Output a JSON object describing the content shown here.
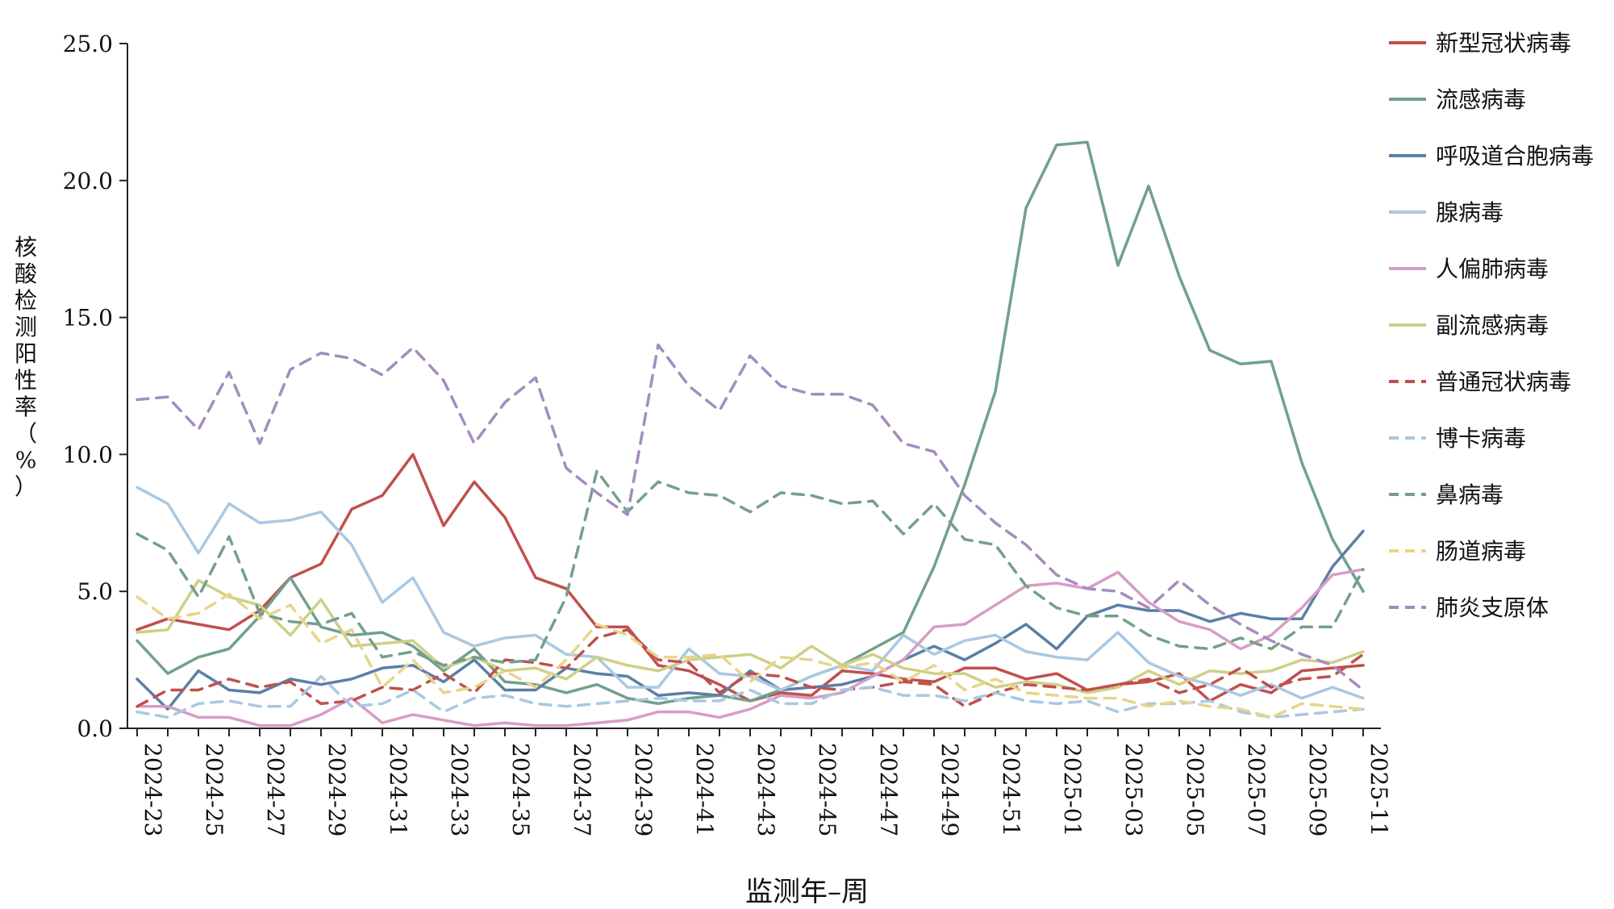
{
  "chart_data": {
    "type": "line",
    "title": "",
    "xlabel": "监测年–周",
    "ylabel": "核酸检测阳性率（%）",
    "ylim": [
      0,
      25
    ],
    "yticks": [
      "0.0",
      "5.0",
      "10.0",
      "15.0",
      "20.0",
      "25.0"
    ],
    "categories": [
      "2024-23",
      "2024-24",
      "2024-25",
      "2024-26",
      "2024-27",
      "2024-28",
      "2024-29",
      "2024-30",
      "2024-31",
      "2024-32",
      "2024-33",
      "2024-34",
      "2024-35",
      "2024-36",
      "2024-37",
      "2024-38",
      "2024-39",
      "2024-40",
      "2024-41",
      "2024-42",
      "2024-43",
      "2024-44",
      "2024-45",
      "2024-46",
      "2024-47",
      "2024-48",
      "2024-49",
      "2024-50",
      "2024-51",
      "2024-52",
      "2025-01",
      "2025-02",
      "2025-03",
      "2025-04",
      "2025-05",
      "2025-06",
      "2025-07",
      "2025-08",
      "2025-09",
      "2025-10",
      "2025-11"
    ],
    "tick_labels": [
      "2024-23",
      "2024-25",
      "2024-27",
      "2024-29",
      "2024-31",
      "2024-33",
      "2024-35",
      "2024-37",
      "2024-39",
      "2024-41",
      "2024-43",
      "2024-45",
      "2024-47",
      "2024-49",
      "2024-51",
      "2025-01",
      "2025-03",
      "2025-05",
      "2025-07",
      "2025-09",
      "2025-11"
    ],
    "legend_position": "right",
    "grid": false,
    "series": [
      {
        "name": "新型冠状病毒",
        "color": "#c0504d",
        "dash": false,
        "values": [
          3.6,
          4.0,
          3.8,
          3.6,
          4.3,
          5.5,
          6.0,
          8.0,
          8.5,
          10.0,
          7.4,
          9.0,
          7.7,
          5.5,
          5.1,
          3.7,
          3.7,
          2.3,
          2.1,
          1.6,
          1.0,
          1.3,
          1.2,
          2.1,
          2.0,
          1.8,
          1.7,
          2.2,
          2.2,
          1.8,
          2.0,
          1.4,
          1.6,
          1.7,
          2.0,
          1.0,
          1.6,
          1.3,
          2.1,
          2.2,
          2.3
        ]
      },
      {
        "name": "流感病毒",
        "color": "#72a08c",
        "dash": false,
        "values": [
          3.2,
          2.0,
          2.6,
          2.9,
          4.1,
          5.5,
          3.7,
          3.4,
          3.5,
          3.0,
          2.1,
          2.9,
          1.7,
          1.6,
          1.3,
          1.6,
          1.1,
          0.9,
          1.1,
          1.2,
          1.0,
          1.4,
          1.9,
          2.3,
          2.9,
          3.5,
          5.9,
          8.9,
          12.3,
          19.0,
          21.3,
          21.4,
          16.9,
          19.8,
          16.5,
          13.8,
          13.3,
          13.4,
          9.7,
          6.9,
          5.0
        ]
      },
      {
        "name": "呼吸道合胞病毒",
        "color": "#5b7fa6",
        "dash": false,
        "values": [
          1.8,
          0.7,
          2.1,
          1.4,
          1.3,
          1.8,
          1.6,
          1.8,
          2.2,
          2.3,
          1.7,
          2.5,
          1.4,
          1.4,
          2.2,
          2.0,
          1.9,
          1.2,
          1.3,
          1.2,
          2.1,
          1.4,
          1.5,
          1.6,
          1.9,
          2.5,
          3.0,
          2.5,
          3.1,
          3.8,
          2.9,
          4.1,
          4.5,
          4.3,
          4.3,
          3.9,
          4.2,
          4.0,
          4.0,
          5.9,
          7.2
        ]
      },
      {
        "name": "腺病毒",
        "color": "#a9c8e2",
        "dash": false,
        "values": [
          8.8,
          8.2,
          6.4,
          8.2,
          7.5,
          7.6,
          7.9,
          6.7,
          4.6,
          5.5,
          3.5,
          3.0,
          3.3,
          3.4,
          2.7,
          2.6,
          1.5,
          1.5,
          2.9,
          2.0,
          1.9,
          1.4,
          1.9,
          2.3,
          2.1,
          3.4,
          2.7,
          3.2,
          3.4,
          2.8,
          2.6,
          2.5,
          3.5,
          2.4,
          1.9,
          1.6,
          1.2,
          1.6,
          1.1,
          1.5,
          1.1
        ]
      },
      {
        "name": "人偏肺病毒",
        "color": "#d89cc4",
        "dash": false,
        "values": [
          0.8,
          0.8,
          0.4,
          0.4,
          0.1,
          0.1,
          0.5,
          1.1,
          0.2,
          0.5,
          0.3,
          0.1,
          0.2,
          0.1,
          0.1,
          0.2,
          0.3,
          0.6,
          0.6,
          0.4,
          0.7,
          1.2,
          1.1,
          1.3,
          1.9,
          2.5,
          3.7,
          3.8,
          4.5,
          5.2,
          5.3,
          5.1,
          5.7,
          4.6,
          3.9,
          3.6,
          2.9,
          3.4,
          4.4,
          5.6,
          5.8
        ]
      },
      {
        "name": "副流感病毒",
        "color": "#cfcf86",
        "dash": false,
        "values": [
          3.5,
          3.6,
          5.4,
          4.8,
          4.5,
          3.4,
          4.7,
          3.0,
          3.1,
          3.2,
          2.2,
          2.6,
          2.1,
          2.2,
          1.8,
          2.6,
          2.3,
          2.1,
          2.5,
          2.6,
          2.7,
          2.2,
          3.0,
          2.3,
          2.7,
          2.2,
          2.0,
          2.0,
          1.5,
          1.7,
          1.6,
          1.3,
          1.5,
          2.1,
          1.6,
          2.1,
          2.0,
          2.1,
          2.5,
          2.4,
          2.8
        ]
      },
      {
        "name": "普通冠状病毒",
        "color": "#c0504d",
        "dash": true,
        "values": [
          0.8,
          1.4,
          1.4,
          1.8,
          1.5,
          1.7,
          0.9,
          1.0,
          1.5,
          1.4,
          2.0,
          1.3,
          2.5,
          2.4,
          2.2,
          3.3,
          3.6,
          2.5,
          2.4,
          1.3,
          2.0,
          1.9,
          1.5,
          1.4,
          1.5,
          1.7,
          1.6,
          0.8,
          1.3,
          1.6,
          1.5,
          1.4,
          1.6,
          1.8,
          1.3,
          1.6,
          2.2,
          1.5,
          1.8,
          1.9,
          2.7
        ]
      },
      {
        "name": "博卡病毒",
        "color": "#a9c8e2",
        "dash": true,
        "values": [
          0.6,
          0.4,
          0.9,
          1.0,
          0.8,
          0.8,
          1.9,
          0.8,
          0.9,
          1.4,
          0.6,
          1.1,
          1.2,
          0.9,
          0.8,
          0.9,
          1.0,
          1.1,
          1.0,
          1.0,
          1.4,
          0.9,
          0.9,
          1.4,
          1.5,
          1.2,
          1.2,
          1.0,
          1.3,
          1.0,
          0.9,
          1.0,
          0.6,
          0.9,
          0.9,
          1.0,
          0.6,
          0.4,
          0.5,
          0.6,
          0.7
        ]
      },
      {
        "name": "鼻病毒",
        "color": "#72a08c",
        "dash": true,
        "values": [
          7.1,
          6.5,
          4.8,
          7.0,
          4.2,
          3.9,
          3.8,
          4.2,
          2.6,
          2.8,
          2.3,
          2.6,
          2.4,
          2.5,
          4.8,
          9.4,
          7.9,
          9.0,
          8.6,
          8.5,
          7.9,
          8.6,
          8.5,
          8.2,
          8.3,
          7.1,
          8.2,
          6.9,
          6.7,
          5.2,
          4.4,
          4.1,
          4.1,
          3.4,
          3.0,
          2.9,
          3.3,
          2.9,
          3.7,
          3.7,
          5.8
        ]
      },
      {
        "name": "肠道病毒",
        "color": "#e8d48a",
        "dash": true,
        "values": [
          4.8,
          4.0,
          4.2,
          4.9,
          4.0,
          4.5,
          3.1,
          3.6,
          1.5,
          2.5,
          1.3,
          1.5,
          2.1,
          1.5,
          2.5,
          3.8,
          3.4,
          2.6,
          2.6,
          2.7,
          1.7,
          2.6,
          2.5,
          2.2,
          2.4,
          1.7,
          2.3,
          1.4,
          1.8,
          1.3,
          1.2,
          1.1,
          1.1,
          0.8,
          1.0,
          0.8,
          0.7,
          0.4,
          0.9,
          0.8,
          0.7
        ]
      },
      {
        "name": "肺炎支原体",
        "color": "#a48cc0",
        "dash": true,
        "values": [
          12.0,
          12.1,
          10.9,
          13.0,
          10.4,
          13.1,
          13.7,
          13.5,
          12.9,
          13.9,
          12.7,
          10.4,
          11.9,
          12.8,
          9.5,
          8.6,
          7.8,
          14.0,
          12.5,
          11.6,
          13.6,
          12.5,
          12.2,
          12.2,
          11.8,
          10.4,
          10.1,
          8.5,
          7.5,
          6.7,
          5.6,
          5.1,
          5.0,
          4.4,
          5.4,
          4.5,
          3.8,
          3.2,
          2.7,
          2.3,
          1.4
        ]
      }
    ]
  }
}
